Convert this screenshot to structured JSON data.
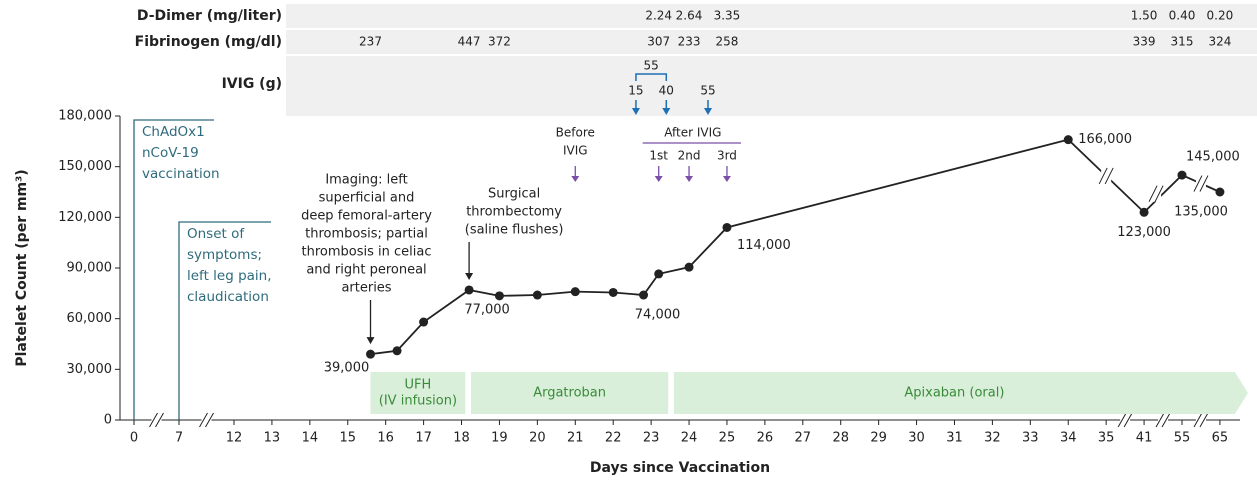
{
  "chart_data": {
    "type": "line",
    "xlabel": "Days since Vaccination",
    "ylabel": "Platelet Count (per mm³)",
    "ylim": [
      0,
      180000
    ],
    "yticks": [
      0,
      {
        "value": 30000,
        "label": "30,000"
      },
      {
        "value": 60000,
        "label": "60,000"
      },
      {
        "value": 90000,
        "label": "90,000"
      },
      {
        "value": 120000,
        "label": "120,000"
      },
      {
        "value": 150000,
        "label": "150,000"
      },
      {
        "value": 180000,
        "label": "180,000"
      }
    ],
    "xticks": [
      0,
      7,
      12,
      13,
      14,
      15,
      16,
      17,
      18,
      19,
      20,
      21,
      22,
      23,
      24,
      25,
      26,
      27,
      28,
      29,
      30,
      31,
      32,
      33,
      34,
      35,
      41,
      55,
      65
    ],
    "x": [
      15.6,
      16.3,
      17,
      18.2,
      19,
      20,
      21,
      22,
      22.8,
      23.2,
      24,
      25,
      34,
      41,
      55,
      65
    ],
    "values": [
      39000,
      41000,
      58000,
      77000,
      73500,
      74000,
      76000,
      75500,
      74000,
      86500,
      90500,
      114000,
      166000,
      123000,
      145000,
      135000
    ],
    "value_labels": [
      "39,000",
      null,
      null,
      "77,000",
      null,
      null,
      null,
      null,
      "74,000",
      null,
      null,
      "114,000",
      "166,000",
      "123,000",
      "145,000",
      "135,000"
    ],
    "color": "#222222",
    "rows": [
      {
        "label": "D-Dimer (mg/liter)",
        "x": [
          23.2,
          24,
          25,
          41,
          55,
          65
        ],
        "values": [
          "2.24",
          "2.64",
          "3.35",
          "1.50",
          "0.40",
          "0.20"
        ]
      },
      {
        "label": "Fibrinogen (mg/dl)",
        "x": [
          15.6,
          18.2,
          19,
          23.2,
          24,
          25,
          41,
          55,
          65
        ],
        "values": [
          "237",
          "447",
          "372",
          "307",
          "233",
          "258",
          "339",
          "315",
          "324"
        ]
      }
    ],
    "ivig": {
      "label": "IVIG (g)",
      "x": [
        22.6,
        23.4,
        24.5
      ],
      "values": [
        15,
        40,
        55
      ],
      "total": 55
    },
    "events": [
      {
        "x": 0,
        "lines": [
          "ChAdOx1",
          "nCoV-19",
          "vaccination"
        ]
      },
      {
        "x": 7,
        "lines": [
          "Onset of",
          "symptoms;",
          "left leg pain,",
          "claudication"
        ]
      }
    ],
    "annotations": [
      {
        "x": 15.6,
        "lines": [
          "Imaging: left",
          "superficial and",
          "deep femoral-artery",
          "thrombosis; partial",
          "thrombosis in celiac",
          "and right peroneal",
          "arteries"
        ]
      },
      {
        "x": 18.2,
        "lines": [
          "Surgical",
          "thrombectomy",
          "(saline flushes)"
        ]
      }
    ],
    "ivig_timing": {
      "before": {
        "x": 21,
        "lines": [
          "Before",
          "IVIG"
        ]
      },
      "after": {
        "title": "After IVIG",
        "x": [
          23.2,
          24,
          25
        ],
        "labels": [
          "1st",
          "2nd",
          "3rd"
        ]
      }
    },
    "treatments": [
      {
        "lines": [
          "UFH",
          "(IV infusion)"
        ],
        "start": 15.6,
        "end": 18.1
      },
      {
        "lines": [
          "Argatroban"
        ],
        "start": 18.25,
        "end": 23.45
      },
      {
        "lines": [
          "Apixaban (oral)"
        ],
        "start": 23.6,
        "end": 65
      }
    ]
  }
}
